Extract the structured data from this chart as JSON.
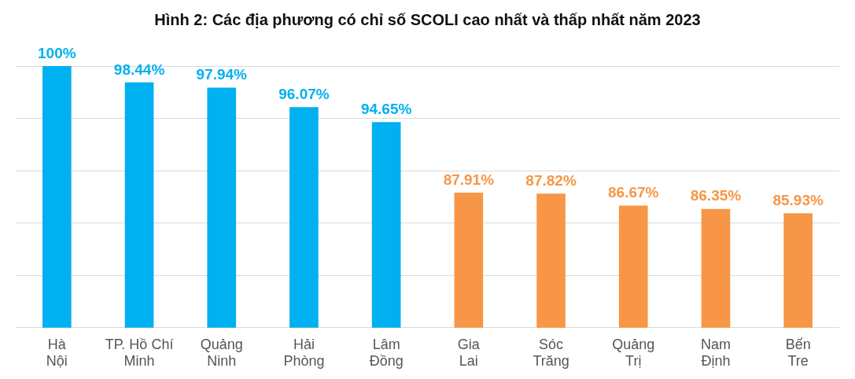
{
  "chart_data": {
    "type": "bar",
    "title": "Hình 2: Các địa phương có chỉ số SCOLI cao nhất và thấp nhất năm 2023",
    "categories": [
      "Hà Nội",
      "TP. Hồ Chí Minh",
      "Quảng Ninh",
      "Hải Phòng",
      "Lâm Đồng",
      "Gia Lai",
      "Sóc Trăng",
      "Quảng Trị",
      "Nam Định",
      "Bến Tre"
    ],
    "values": [
      100,
      98.44,
      97.94,
      96.07,
      94.65,
      87.91,
      87.82,
      86.67,
      86.35,
      85.93
    ],
    "colors": [
      "#00b0f0",
      "#00b0f0",
      "#00b0f0",
      "#00b0f0",
      "#00b0f0",
      "#f79646",
      "#f79646",
      "#f79646",
      "#f79646",
      "#f79646"
    ],
    "value_labels": [
      "100%",
      "98.44%",
      "97.94%",
      "96.07%",
      "94.65%",
      "87.91%",
      "87.82%",
      "86.67%",
      "86.35%",
      "85.93%"
    ],
    "ylim": [
      75,
      100
    ],
    "yticks": [
      75,
      80,
      85,
      90,
      95,
      100
    ],
    "grid": "y",
    "tick_labels": "x"
  }
}
